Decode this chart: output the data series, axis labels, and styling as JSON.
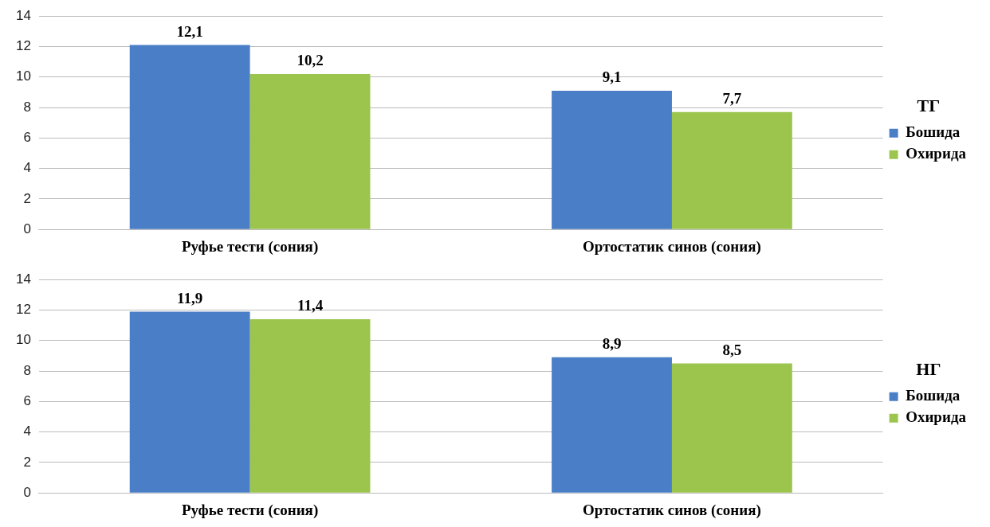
{
  "chart_data": [
    {
      "type": "bar",
      "legend_title": "ТГ",
      "categories": [
        "Руфье тести (сония)",
        "Ортостатик синов (сония)"
      ],
      "series": [
        {
          "name": "Бошида",
          "color": "#4a7fc8",
          "values": [
            12.1,
            9.1
          ],
          "value_labels": [
            "12,1",
            "9,1"
          ]
        },
        {
          "name": "Охирида",
          "color": "#9cc54e",
          "values": [
            10.2,
            7.7
          ],
          "value_labels": [
            "10,2",
            "7,7"
          ]
        }
      ],
      "ylim": [
        0,
        14
      ],
      "yticks": [
        0,
        2,
        4,
        6,
        8,
        10,
        12,
        14
      ],
      "grid": "y",
      "legend": "right"
    },
    {
      "type": "bar",
      "legend_title": "НГ",
      "categories": [
        "Руфье тести (сония)",
        "Ортостатик синов (сония)"
      ],
      "series": [
        {
          "name": "Бошида",
          "color": "#4a7fc8",
          "values": [
            11.9,
            8.9
          ],
          "value_labels": [
            "11,9",
            "8,9"
          ]
        },
        {
          "name": "Охирида",
          "color": "#9cc54e",
          "values": [
            11.4,
            8.5
          ],
          "value_labels": [
            "11,4",
            "8,5"
          ]
        }
      ],
      "ylim": [
        0,
        14
      ],
      "yticks": [
        0,
        2,
        4,
        6,
        8,
        10,
        12,
        14
      ],
      "grid": "y",
      "legend": "right"
    }
  ]
}
